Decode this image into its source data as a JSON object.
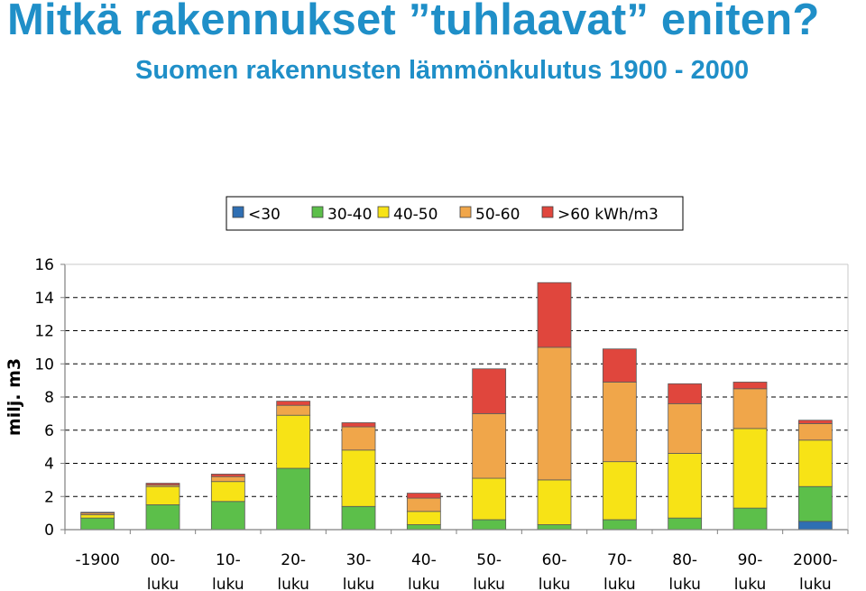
{
  "title": "Mitkä rakennukset ”tuhlaavat” eniten?",
  "subtitle": "Suomen rakennusten lämmönkulutus 1900 - 2000",
  "colors": {
    "title": "#1f8fc8",
    "lt30": "#2f6fb3",
    "30_40": "#5cbf4a",
    "40_50": "#f7e316",
    "50_60": "#f0a64a",
    "gt60": "#e0463d",
    "plot_bg": "#ffffff",
    "grid": "#000000"
  },
  "chart_data": {
    "type": "bar",
    "stacked": true,
    "ylabel": "milj. m3",
    "xlabel": "",
    "ylim": [
      0,
      16
    ],
    "yticks": [
      "0",
      "2",
      "4",
      "6",
      "8",
      "10",
      "12",
      "14",
      "16"
    ],
    "grid": "horizontal dashed",
    "legend_position": "top",
    "categories": [
      [
        "-1900",
        ""
      ],
      [
        "00-",
        "luku"
      ],
      [
        "10-",
        "luku"
      ],
      [
        "20-",
        "luku"
      ],
      [
        "30-",
        "luku"
      ],
      [
        "40-",
        "luku"
      ],
      [
        "50-",
        "luku"
      ],
      [
        "60-",
        "luku"
      ],
      [
        "70-",
        "luku"
      ],
      [
        "80-",
        "luku"
      ],
      [
        "90-",
        "luku"
      ],
      [
        "2000-",
        "luku"
      ]
    ],
    "series": [
      {
        "name": "<30",
        "color": "#2f6fb3",
        "values": [
          0,
          0,
          0,
          0,
          0,
          0,
          0,
          0,
          0,
          0,
          0,
          0.5
        ]
      },
      {
        "name": "30-40",
        "color": "#5cbf4a",
        "values": [
          0.7,
          1.5,
          1.7,
          3.7,
          1.4,
          0.3,
          0.6,
          0.3,
          0.6,
          0.7,
          1.3,
          2.1
        ]
      },
      {
        "name": "40-50",
        "color": "#f7e316",
        "values": [
          0.2,
          1.1,
          1.2,
          3.2,
          3.4,
          0.8,
          2.5,
          2.7,
          3.5,
          3.9,
          4.8,
          2.8
        ]
      },
      {
        "name": "50-60",
        "color": "#f0a64a",
        "values": [
          0.1,
          0.1,
          0.3,
          0.6,
          1.4,
          0.8,
          3.9,
          8.0,
          4.8,
          3.0,
          2.4,
          1.0
        ]
      },
      {
        "name": ">60 kWh/m3",
        "color": "#e0463d",
        "values": [
          0.05,
          0.1,
          0.15,
          0.25,
          0.25,
          0.3,
          2.7,
          3.9,
          2.0,
          1.2,
          0.4,
          0.2
        ]
      }
    ]
  }
}
